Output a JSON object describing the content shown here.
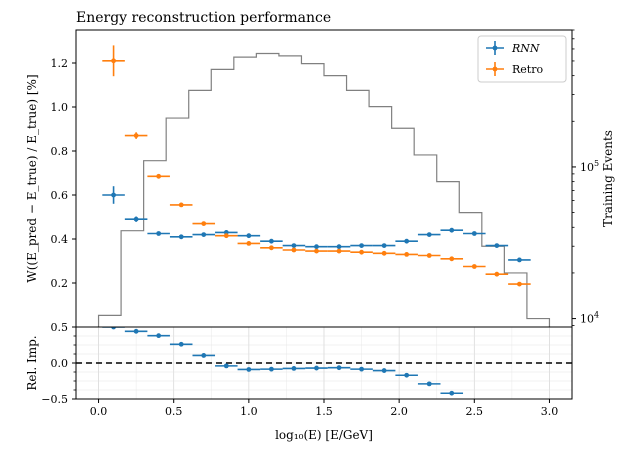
{
  "chart_data": {
    "type": "line",
    "title": "Energy reconstruction performance",
    "xlabel": "log₁₀(E) [E/GeV]",
    "xlim": [
      -0.15,
      3.15
    ],
    "x_ticks": [
      "0.0",
      "0.5",
      "1.0",
      "1.5",
      "2.0",
      "2.5",
      "3.0"
    ],
    "x_tick_values": [
      0.0,
      0.5,
      1.0,
      1.5,
      2.0,
      2.5,
      3.0
    ],
    "top_panel": {
      "ylabel": "W((E_pred − E_true) / E_true) [%]",
      "ylim": [
        0.0,
        1.35
      ],
      "y_ticks": [
        "0.2",
        "0.4",
        "0.6",
        "0.8",
        "1.0",
        "1.2"
      ],
      "y_tick_values": [
        0.2,
        0.4,
        0.6,
        0.8,
        1.0,
        1.2
      ],
      "legend_position": "top-right",
      "series": [
        {
          "name": "RNN",
          "color": "#1f77b4",
          "x": [
            0.1,
            0.25,
            0.4,
            0.55,
            0.7,
            0.85,
            1.0,
            1.15,
            1.3,
            1.45,
            1.6,
            1.75,
            1.9,
            2.05,
            2.2,
            2.35,
            2.5,
            2.65,
            2.8
          ],
          "y": [
            0.6,
            0.49,
            0.425,
            0.41,
            0.42,
            0.43,
            0.415,
            0.39,
            0.37,
            0.365,
            0.365,
            0.37,
            0.37,
            0.39,
            0.42,
            0.44,
            0.425,
            0.37,
            0.305
          ],
          "yerr": [
            0.04,
            0.012,
            0.008,
            0.007,
            0.006,
            0.006,
            0.006,
            0.006,
            0.006,
            0.006,
            0.006,
            0.006,
            0.006,
            0.007,
            0.008,
            0.009,
            0.009,
            0.009,
            0.01
          ]
        },
        {
          "name": "Retro",
          "color": "#ff7f0e",
          "x": [
            0.1,
            0.25,
            0.4,
            0.55,
            0.7,
            0.85,
            1.0,
            1.15,
            1.3,
            1.45,
            1.6,
            1.75,
            1.9,
            2.05,
            2.2,
            2.35,
            2.5,
            2.65,
            2.8
          ],
          "y": [
            1.21,
            0.87,
            0.685,
            0.555,
            0.47,
            0.415,
            0.38,
            0.36,
            0.35,
            0.345,
            0.345,
            0.34,
            0.335,
            0.33,
            0.325,
            0.31,
            0.275,
            0.24,
            0.195
          ],
          "yerr": [
            0.07,
            0.015,
            0.008,
            0.007,
            0.006,
            0.006,
            0.006,
            0.006,
            0.006,
            0.006,
            0.006,
            0.006,
            0.006,
            0.006,
            0.006,
            0.007,
            0.007,
            0.007,
            0.008
          ]
        }
      ],
      "legend": [
        {
          "label": "RNN",
          "color": "#1f77b4"
        },
        {
          "label": "Retro",
          "color": "#ff7f0e"
        }
      ]
    },
    "training_histogram": {
      "ylabel": "Training Events",
      "scale": "log",
      "ylim": [
        8800,
        800000
      ],
      "y_tick_labels": [
        "10⁴",
        "10⁵"
      ],
      "color": "#808080",
      "bin_edges": [
        0.0,
        0.15,
        0.3,
        0.45,
        0.6,
        0.75,
        0.9,
        1.05,
        1.2,
        1.35,
        1.5,
        1.65,
        1.8,
        1.95,
        2.1,
        2.25,
        2.4,
        2.55,
        2.7,
        2.85,
        3.0
      ],
      "counts": [
        10500,
        38000,
        110000,
        210000,
        320000,
        440000,
        530000,
        560000,
        540000,
        480000,
        400000,
        320000,
        250000,
        180000,
        120000,
        80000,
        50000,
        30000,
        20000,
        10000
      ]
    },
    "bottom_panel": {
      "ylabel": "Rel. Imp.",
      "ylim": [
        -0.5,
        0.5
      ],
      "y_ticks": [
        "−0.5",
        "0.0",
        "0.5"
      ],
      "y_tick_values": [
        -0.5,
        0.0,
        0.5
      ],
      "y_minor_ticks": [
        -0.375,
        -0.25,
        -0.125,
        0.125,
        0.25,
        0.375
      ],
      "grid": true,
      "reference_line_y": 0.0,
      "series": {
        "color": "#1f77b4",
        "x": [
          0.1,
          0.25,
          0.4,
          0.55,
          0.7,
          0.85,
          1.0,
          1.15,
          1.3,
          1.45,
          1.6,
          1.75,
          1.9,
          2.05,
          2.2,
          2.35
        ],
        "y": [
          0.5,
          0.44,
          0.38,
          0.26,
          0.105,
          -0.04,
          -0.09,
          -0.085,
          -0.075,
          -0.07,
          -0.065,
          -0.085,
          -0.105,
          -0.17,
          -0.29,
          -0.42
        ]
      }
    }
  }
}
